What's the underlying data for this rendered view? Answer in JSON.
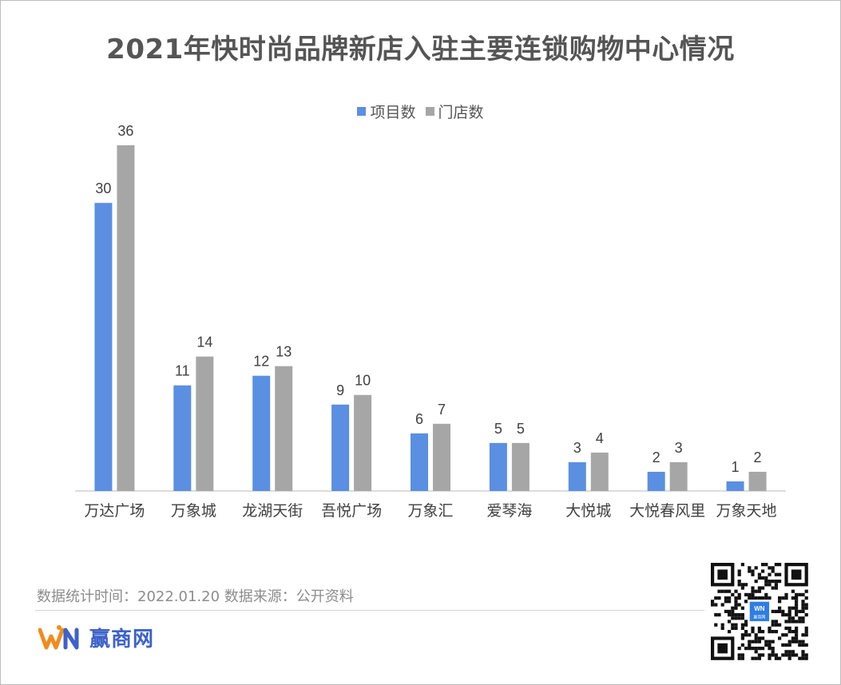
{
  "title": "2021年快时尚品牌新店入驻主要连锁购物中心情况",
  "legend": [
    {
      "label": "项目数",
      "color": "#5b8fe1"
    },
    {
      "label": "门店数",
      "color": "#a6a6a6"
    }
  ],
  "chart_data": {
    "type": "bar",
    "title": "2021年快时尚品牌新店入驻主要连锁购物中心情况",
    "categories": [
      "万达广场",
      "万象城",
      "龙湖天街",
      "吾悦广场",
      "万象汇",
      "爱琴海",
      "大悦城",
      "大悦春风里",
      "万象天地"
    ],
    "series": [
      {
        "name": "项目数",
        "color": "#5b8fe1",
        "values": [
          30,
          11,
          12,
          9,
          6,
          5,
          3,
          2,
          1
        ]
      },
      {
        "name": "门店数",
        "color": "#a6a6a6",
        "values": [
          36,
          14,
          13,
          10,
          7,
          5,
          4,
          3,
          2
        ]
      }
    ],
    "ylim": [
      0,
      40
    ],
    "grid": false,
    "legend_position": "top",
    "data_labels": true
  },
  "footer": {
    "note": "数据统计时间：2022.01.20  数据来源：公开资料",
    "brand_name": "赢商网",
    "qr_badge": "赢商网"
  },
  "colors": {
    "title": "#555555",
    "axis": "#d0d0d0",
    "brand_blue": "#3d62c9",
    "brand_orange": "#f08c1e"
  }
}
